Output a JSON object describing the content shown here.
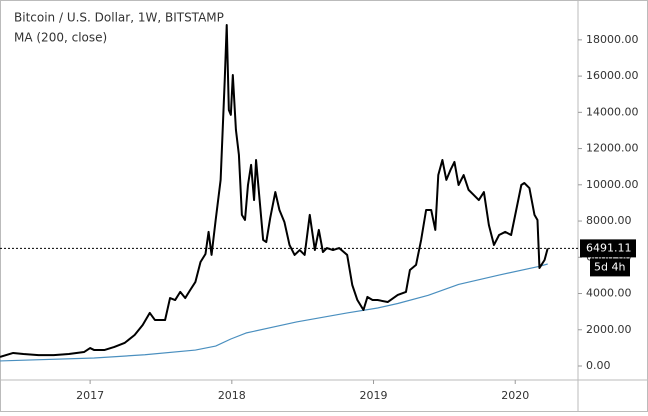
{
  "chart_data": {
    "type": "line",
    "title": "Bitcoin / U.S. Dollar, 1W, BITSTAMP",
    "subtitle": "MA (200, close)",
    "countdown": "5d 4h",
    "xlim": [
      2016.364,
      2020.443
    ],
    "xticks": [
      2017,
      2018,
      2019,
      2020
    ],
    "ylim": [
      -773,
      20200
    ],
    "yticks": [
      {
        "value": 0,
        "label": "0.00"
      },
      {
        "value": 2000,
        "label": "2000.00"
      },
      {
        "value": 4000,
        "label": "4000.00"
      },
      {
        "value": 6000,
        "label": "6000.00"
      },
      {
        "value": 8000,
        "label": "8000.00"
      },
      {
        "value": 10000,
        "label": "10000.00"
      },
      {
        "value": 12000,
        "label": "12000.00"
      },
      {
        "value": 14000,
        "label": "14000.00"
      },
      {
        "value": 16000,
        "label": "16000.00"
      },
      {
        "value": 18000,
        "label": "18000.00"
      }
    ],
    "last_price_line": true,
    "series": [
      {
        "color": "#000000",
        "x": [
          2016.364,
          2016.457,
          2016.529,
          2016.636,
          2016.743,
          2016.85,
          2016.957,
          2017.0,
          2017.029,
          2017.1,
          2017.171,
          2017.243,
          2017.314,
          2017.371,
          2017.421,
          2017.457,
          2017.529,
          2017.564,
          2017.6,
          2017.636,
          2017.671,
          2017.707,
          2017.743,
          2017.779,
          2017.814,
          2017.836,
          2017.857,
          2017.886,
          2017.921,
          2017.95,
          2017.964,
          2017.979,
          2017.993,
          2018.007,
          2018.029,
          2018.05,
          2018.071,
          2018.093,
          2018.114,
          2018.136,
          2018.157,
          2018.171,
          2018.193,
          2018.221,
          2018.243,
          2018.271,
          2018.307,
          2018.336,
          2018.371,
          2018.407,
          2018.443,
          2018.479,
          2018.514,
          2018.55,
          2018.586,
          2018.614,
          2018.643,
          2018.671,
          2018.714,
          2018.757,
          2018.814,
          2018.85,
          2018.886,
          2018.929,
          2018.957,
          2018.993,
          2019.029,
          2019.1,
          2019.171,
          2019.229,
          2019.257,
          2019.3,
          2019.336,
          2019.371,
          2019.407,
          2019.436,
          2019.457,
          2019.486,
          2019.514,
          2019.543,
          2019.571,
          2019.6,
          2019.636,
          2019.671,
          2019.707,
          2019.743,
          2019.779,
          2019.814,
          2019.85,
          2019.886,
          2019.929,
          2019.971,
          2020.007,
          2020.043,
          2020.064,
          2020.1,
          2020.136,
          2020.157,
          2020.171,
          2020.207,
          2020.229
        ],
        "values": [
          500,
          720,
          660,
          600,
          600,
          660,
          770,
          990,
          880,
          880,
          1050,
          1270,
          1710,
          2260,
          2930,
          2540,
          2540,
          3750,
          3640,
          4090,
          3750,
          4200,
          4640,
          5740,
          6180,
          7400,
          6130,
          8060,
          10270,
          15790,
          18820,
          14130,
          13860,
          16060,
          13030,
          11650,
          8340,
          8060,
          9990,
          11100,
          9160,
          11370,
          9440,
          6960,
          6840,
          8170,
          9600,
          8610,
          7950,
          6680,
          6130,
          6400,
          6130,
          8340,
          6400,
          7510,
          6290,
          6510,
          6400,
          6510,
          6130,
          4470,
          3640,
          3090,
          3810,
          3640,
          3640,
          3530,
          3920,
          4090,
          5300,
          5580,
          6960,
          8610,
          8610,
          7510,
          10540,
          11370,
          10270,
          10820,
          11260,
          9990,
          10540,
          9720,
          9440,
          9160,
          9600,
          7780,
          6680,
          7230,
          7400,
          7230,
          8610,
          9990,
          10100,
          9820,
          8340,
          8060,
          5410,
          5850,
          6491.11
        ]
      },
      {
        "color": "#4a8fbf",
        "x": [
          2016.364,
          2017.029,
          2017.386,
          2017.743,
          2017.886,
          2017.993,
          2018.1,
          2018.457,
          2018.814,
          2019.029,
          2019.171,
          2019.386,
          2019.6,
          2019.886,
          2020.171,
          2020.229
        ],
        "values": [
          280,
          440,
          620,
          880,
          1100,
          1490,
          1820,
          2430,
          2930,
          3200,
          3450,
          3900,
          4500,
          5020,
          5500,
          5630
        ]
      }
    ]
  }
}
